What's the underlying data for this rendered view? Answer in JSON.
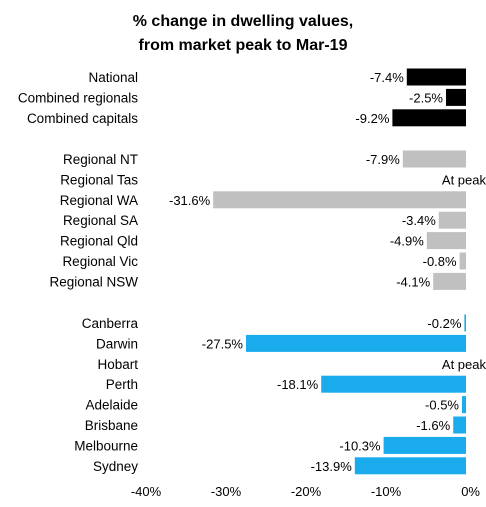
{
  "chart_data": {
    "type": "bar",
    "orientation": "horizontal",
    "title": [
      "% change in dwelling values,",
      "from market peak to Mar-19"
    ],
    "xlim": [
      -40,
      0
    ],
    "xticks": [
      "-40%",
      "-30%",
      "-20%",
      "-10%",
      "0%"
    ],
    "xtick_values": [
      -40,
      -30,
      -20,
      -10,
      0
    ],
    "grid": false,
    "legend": "none",
    "groups": [
      {
        "color": "#000000",
        "categories": [
          "National",
          "Combined regionals",
          "Combined capitals"
        ],
        "values": [
          -7.4,
          -2.5,
          -9.2
        ],
        "labels": [
          "-7.4%",
          "-2.5%",
          "-9.2%"
        ]
      },
      {
        "color": "#c0c0c0",
        "categories": [
          "Regional NT",
          "Regional Tas",
          "Regional WA",
          "Regional SA",
          "Regional Qld",
          "Regional Vic",
          "Regional NSW"
        ],
        "values": [
          -7.9,
          0,
          -31.6,
          -3.4,
          -4.9,
          -0.8,
          -4.1
        ],
        "labels": [
          "-7.9%",
          "At peak",
          "-31.6%",
          "-3.4%",
          "-4.9%",
          "-0.8%",
          "-4.1%"
        ]
      },
      {
        "color": "#1aabec",
        "categories": [
          "Canberra",
          "Darwin",
          "Hobart",
          "Perth",
          "Adelaide",
          "Brisbane",
          "Melbourne",
          "Sydney"
        ],
        "values": [
          -0.2,
          -27.5,
          0,
          -18.1,
          -0.5,
          -1.6,
          -10.3,
          -13.9
        ],
        "labels": [
          "-0.2%",
          "-27.5%",
          "At peak",
          "-18.1%",
          "-0.5%",
          "-1.6%",
          "-10.3%",
          "-13.9%"
        ]
      }
    ]
  }
}
